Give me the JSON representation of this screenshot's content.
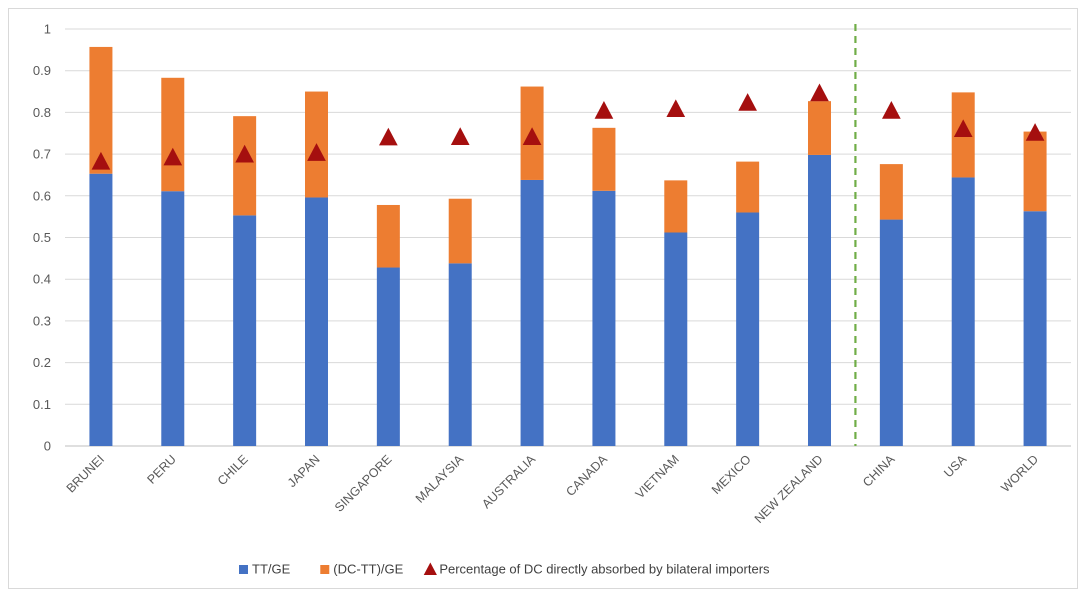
{
  "chart_data": {
    "type": "bar",
    "stacked": true,
    "title": "",
    "xlabel": "",
    "ylabel": "",
    "ylim": [
      0,
      1
    ],
    "yticks": [
      "0",
      "0.1",
      "0.2",
      "0.3",
      "0.4",
      "0.5",
      "0.6",
      "0.7",
      "0.8",
      "0.9",
      "1"
    ],
    "grid": true,
    "legend_position": "bottom",
    "categories": [
      "BRUNEI",
      "PERU",
      "CHILE",
      "JAPAN",
      "SINGAPORE",
      "MALAYSIA",
      "AUSTRALIA",
      "CANADA",
      "VIETNAM",
      "MEXICO",
      "NEW ZEALAND",
      "CHINA",
      "USA",
      "WORLD"
    ],
    "series": [
      {
        "name": "TT/GE",
        "kind": "bar",
        "color": "#4472C4",
        "values": [
          0.653,
          0.611,
          0.553,
          0.596,
          0.428,
          0.438,
          0.638,
          0.612,
          0.512,
          0.56,
          0.698,
          0.543,
          0.644,
          0.563
        ]
      },
      {
        "name": "(DC-TT)/GE",
        "kind": "bar",
        "color": "#ED7D31",
        "values": [
          0.304,
          0.272,
          0.238,
          0.254,
          0.15,
          0.155,
          0.224,
          0.151,
          0.125,
          0.122,
          0.129,
          0.133,
          0.204,
          0.191
        ]
      },
      {
        "name": "Percentage of DC directly absorbed by bilateral importers",
        "kind": "marker",
        "marker": "triangle",
        "color": "#A50F0F",
        "values": [
          0.68,
          0.69,
          0.697,
          0.701,
          0.738,
          0.739,
          0.739,
          0.802,
          0.806,
          0.821,
          0.844,
          0.802,
          0.758,
          0.749
        ]
      }
    ],
    "separator": {
      "after_category": "NEW ZEALAND",
      "style": "dashed",
      "color": "#70AD47"
    }
  }
}
